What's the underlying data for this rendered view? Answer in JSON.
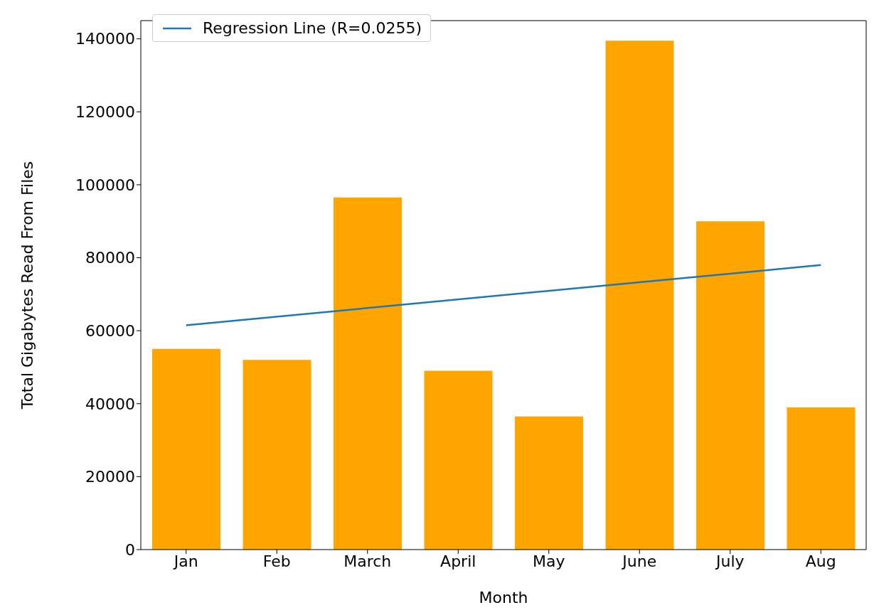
{
  "chart_data": {
    "type": "bar",
    "xlabel": "Month",
    "ylabel": "Total Gigabytes Read From Files",
    "categories": [
      "Jan",
      "Feb",
      "March",
      "April",
      "May",
      "June",
      "July",
      "Aug"
    ],
    "series": [
      {
        "color": "#ffa500",
        "values": [
          55000,
          52000,
          96500,
          49000,
          36500,
          139500,
          90000,
          39000
        ]
      },
      {
        "type": "line",
        "name": "Regression Line (R=0.0255)",
        "color": "#1f77b4",
        "x": [
          "Jan",
          "Aug"
        ],
        "values": [
          61500,
          78000
        ]
      }
    ],
    "ylim": [
      0,
      145000
    ],
    "yticks": [
      0,
      20000,
      40000,
      60000,
      80000,
      100000,
      120000,
      140000
    ],
    "grid": false,
    "legend": "top left"
  }
}
